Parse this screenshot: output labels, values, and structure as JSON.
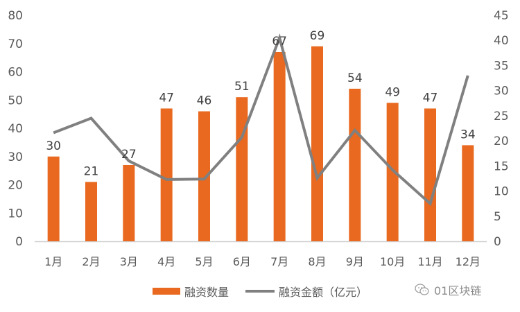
{
  "chart_data": {
    "type": "bar+line",
    "title": "",
    "categories": [
      "1月",
      "2月",
      "3月",
      "4月",
      "5月",
      "6月",
      "7月",
      "8月",
      "9月",
      "10月",
      "11月",
      "12月"
    ],
    "series": [
      {
        "name": "融资数量",
        "type": "bar",
        "axis": "left",
        "color": "#E8691F",
        "values": [
          30,
          21,
          27,
          47,
          46,
          51,
          67,
          69,
          54,
          49,
          47,
          34
        ],
        "data_labels": true
      },
      {
        "name": "融资金额（亿元）",
        "type": "line",
        "axis": "right",
        "color": "#808080",
        "values": [
          21.6,
          24.5,
          16.0,
          12.3,
          12.4,
          20.7,
          40.5,
          12.6,
          22.1,
          14.2,
          7.5,
          33.0
        ],
        "data_labels": false
      }
    ],
    "left_axis": {
      "min": 0,
      "max": 80,
      "step": 10,
      "ticks": [
        "0",
        "10",
        "20",
        "30",
        "40",
        "50",
        "60",
        "70",
        "80"
      ]
    },
    "right_axis": {
      "min": 0,
      "max": 45,
      "step": 5,
      "ticks": [
        "0",
        "5",
        "10",
        "15",
        "20",
        "25",
        "30",
        "35",
        "40",
        "45"
      ]
    },
    "grid": false,
    "legend_position": "bottom"
  },
  "legend": {
    "bar_label": "融资数量",
    "line_label": "融资金额（亿元）"
  },
  "watermark": {
    "icon": "wechat-icon",
    "text": "01区块链"
  }
}
